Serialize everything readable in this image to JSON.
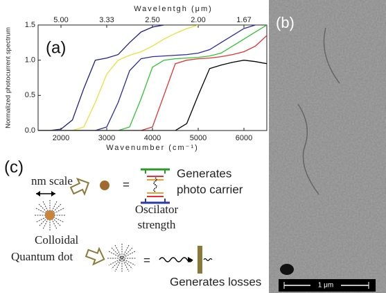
{
  "chart_data": {
    "type": "line",
    "panel_label": "(a)",
    "xlabel": "Wavenumber (cm⁻¹)",
    "x2label": "Wavelentgh (μm)",
    "ylabel": "Normalized photocurrent spectrum",
    "x": [
      1500,
      1750,
      2000,
      2250,
      2500,
      2750,
      3000,
      3250,
      3500,
      3750,
      4000,
      4250,
      4500,
      4750,
      5000,
      5250,
      5500,
      5750,
      6000,
      6250,
      6500
    ],
    "series": [
      {
        "color": "#1f1f8f",
        "values": [
          0,
          0,
          0.02,
          0.15,
          0.6,
          1.0,
          1.03,
          1.08,
          1.25,
          1.4,
          1.47,
          1.5,
          null,
          null,
          null,
          null,
          null,
          null,
          null,
          null,
          null
        ]
      },
      {
        "color": "#e6e23a",
        "values": [
          0,
          0,
          0,
          0,
          0.05,
          0.4,
          0.8,
          1.0,
          1.07,
          1.12,
          1.2,
          1.3,
          1.38,
          1.45,
          1.5,
          null,
          null,
          null,
          null,
          null,
          null
        ]
      },
      {
        "color": "#2a2aa8",
        "values": [
          0,
          0,
          0,
          0,
          0,
          0,
          0.05,
          0.4,
          0.85,
          1.02,
          1.05,
          1.06,
          1.07,
          1.08,
          1.1,
          1.15,
          1.25,
          1.35,
          1.45,
          1.5,
          null
        ]
      },
      {
        "color": "#2ec52e",
        "values": [
          0,
          0,
          0,
          0,
          0,
          0,
          0,
          0,
          0.05,
          0.45,
          0.9,
          1.0,
          1.02,
          1.03,
          1.04,
          1.06,
          1.1,
          1.2,
          1.3,
          1.4,
          1.5
        ]
      },
      {
        "color": "#e83030",
        "values": [
          0,
          0,
          0,
          0,
          0,
          0,
          0,
          0,
          0,
          0,
          0.05,
          0.5,
          0.95,
          1.0,
          1.02,
          1.03,
          1.05,
          1.08,
          1.12,
          1.2,
          1.35
        ]
      },
      {
        "color": "#000000",
        "values": [
          0,
          0,
          0,
          0,
          0,
          0,
          0,
          0,
          0,
          0,
          0,
          0,
          0,
          0.1,
          0.5,
          0.88,
          0.93,
          0.97,
          1.0,
          0.98,
          0.95
        ]
      }
    ],
    "xlim": [
      1500,
      6500
    ],
    "ylim": [
      0,
      1.5
    ],
    "xticks": [
      2000,
      3000,
      4000,
      5000,
      6000
    ],
    "x2ticks": [
      {
        "value": 2000,
        "label": "5.00"
      },
      {
        "value": 3000,
        "label": "3.33"
      },
      {
        "value": 4000,
        "label": "2.50"
      },
      {
        "value": 5000,
        "label": "2.00"
      },
      {
        "value": 6000,
        "label": "1.67"
      }
    ],
    "yticks": [
      {
        "value": 0,
        "label": "0.0"
      },
      0.5,
      {
        "value": 1,
        "label": "1.0"
      },
      1.5
    ]
  },
  "panel_b": {
    "label": "(b)",
    "scale_bar": "1 μm"
  },
  "panel_c": {
    "label": "(c)",
    "nm_scale": "nm scale",
    "equals_top": "=",
    "generates_top": [
      "Generates",
      "photo carrier"
    ],
    "oscillator": [
      "Oscilator",
      "strength"
    ],
    "dot_name": [
      "Colloidal",
      "Quantum dot"
    ],
    "equals_bottom": "=",
    "generates_bottom": "Generates losses"
  }
}
